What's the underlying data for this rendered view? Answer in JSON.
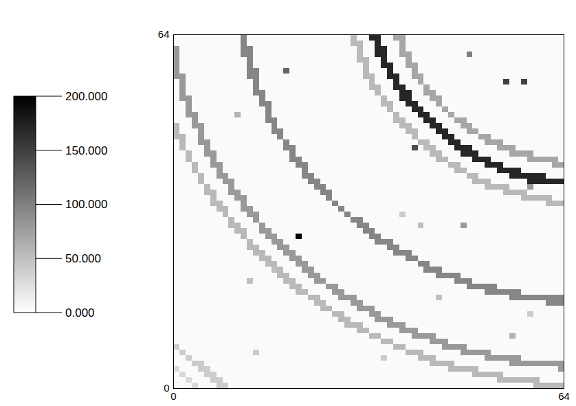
{
  "chart_data": {
    "type": "heatmap",
    "xlim": [
      0,
      64
    ],
    "ylim": [
      0,
      64
    ],
    "xticks": [
      0,
      64
    ],
    "yticks": [
      0,
      64
    ],
    "colorbar": {
      "range": [
        0,
        200
      ],
      "ticks": [
        {
          "value": 0,
          "label": "0.000"
        },
        {
          "value": 50,
          "label": "50.000"
        },
        {
          "value": 100,
          "label": "100.000"
        },
        {
          "value": 150,
          "label": "150.000"
        },
        {
          "value": 200,
          "label": "200.000"
        }
      ]
    },
    "cells": {
      "background": 4,
      "ring_center": [
        68,
        73
      ],
      "rings": [
        {
          "radius": 32.5,
          "width": 1.2,
          "value": 70
        },
        {
          "radius": 36,
          "width": 1.5,
          "value": 170
        },
        {
          "radius": 39.5,
          "width": 1.2,
          "value": 55
        },
        {
          "radius": 57.3,
          "width": 1.3,
          "value": 95
        },
        {
          "radius": 69,
          "width": 1.3,
          "value": 80
        },
        {
          "radius": 72.5,
          "width": 1.2,
          "value": 55
        },
        {
          "radius": 94,
          "width": 1.2,
          "value": 40
        },
        {
          "radius": 97,
          "width": 1.2,
          "value": 30
        }
      ],
      "hot_pixels": [
        {
          "x": 20,
          "y": 27,
          "value": 200
        },
        {
          "x": 18,
          "y": 57,
          "value": 120
        },
        {
          "x": 54,
          "y": 55,
          "value": 150
        },
        {
          "x": 57,
          "y": 55,
          "value": 150
        },
        {
          "x": 39,
          "y": 43,
          "value": 140
        },
        {
          "x": 48,
          "y": 60,
          "value": 100
        },
        {
          "x": 58,
          "y": 36,
          "value": 80
        },
        {
          "x": 47,
          "y": 29,
          "value": 80
        },
        {
          "x": 40,
          "y": 29,
          "value": 50
        },
        {
          "x": 10,
          "y": 49,
          "value": 60
        },
        {
          "x": 12,
          "y": 19,
          "value": 50
        },
        {
          "x": 16,
          "y": 21,
          "value": 50
        },
        {
          "x": 55,
          "y": 9,
          "value": 60
        },
        {
          "x": 58,
          "y": 13,
          "value": 40
        },
        {
          "x": 43,
          "y": 16,
          "value": 50
        },
        {
          "x": 37,
          "y": 31,
          "value": 40
        },
        {
          "x": 13,
          "y": 6,
          "value": 40
        },
        {
          "x": 34,
          "y": 5,
          "value": 40
        }
      ]
    }
  }
}
